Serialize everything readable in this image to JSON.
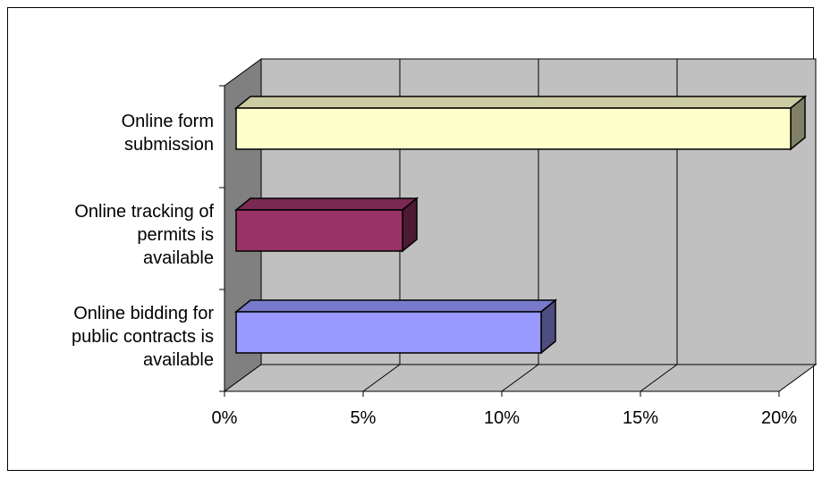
{
  "colors": {
    "wall": "#c0c0c0",
    "side_wall": "#808080",
    "floor": "#c0c0c0",
    "grid": "#000000"
  },
  "chart_data": {
    "type": "bar",
    "orientation": "horizontal",
    "three_d": true,
    "title": "",
    "xlabel": "",
    "ylabel": "",
    "categories": [
      "Online form submission",
      "Online tracking of permits is available",
      "Online bidding for public contracts is available"
    ],
    "category_lines": [
      [
        "Online form",
        "submission"
      ],
      [
        "Online tracking of",
        "permits is",
        "available"
      ],
      [
        "Online bidding for",
        "public contracts is",
        "available"
      ]
    ],
    "values": [
      20,
      6,
      11
    ],
    "value_format": "percent",
    "xlim": [
      0,
      20
    ],
    "xticks": [
      0,
      5,
      10,
      15,
      20
    ],
    "xtick_labels": [
      "0%",
      "5%",
      "10%",
      "15%",
      "20%"
    ],
    "bar_colors": [
      {
        "front": "#ffffcc",
        "top": "#cccca3",
        "side": "#808066"
      },
      {
        "front": "#993366",
        "top": "#7a2952",
        "side": "#4d1a33"
      },
      {
        "front": "#9999ff",
        "top": "#7a7acc",
        "side": "#4d4d80"
      }
    ],
    "gridlines": true,
    "legend": "none"
  }
}
